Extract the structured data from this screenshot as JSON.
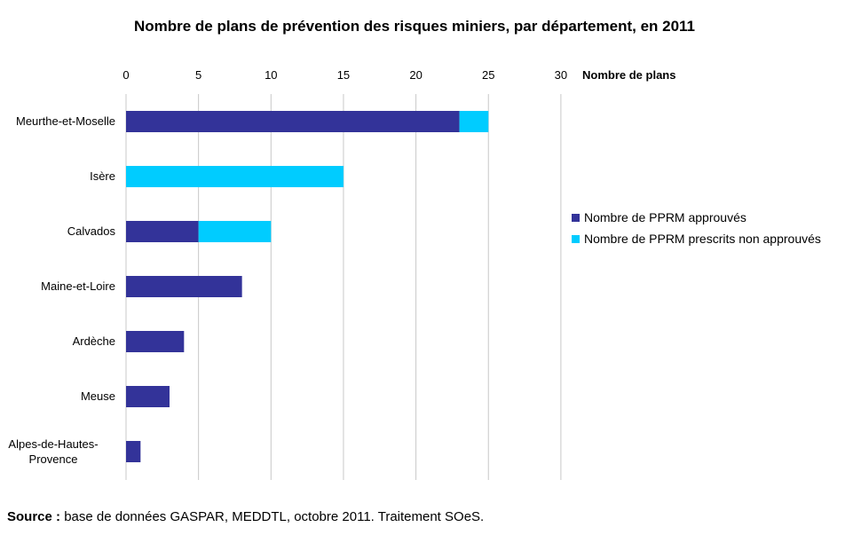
{
  "title": "Nombre de plans de prévention des risques miniers, par département, en 2011",
  "source": {
    "label": "Source :",
    "text": "base de données GASPAR, MEDDTL, octobre 2011. Traitement SOeS."
  },
  "chart_data": {
    "type": "bar",
    "orientation": "horizontal",
    "stacked": true,
    "title": "Nombre de plans de prévention des risques miniers, par département, en 2011",
    "xlabel": "Nombre de plans",
    "xlim": [
      0,
      30
    ],
    "xticks": [
      0,
      5,
      10,
      15,
      20,
      25,
      30
    ],
    "x_axis_position": "top",
    "grid": true,
    "legend_position": "right",
    "categories": [
      "Meurthe-et-Moselle",
      "Isère",
      "Calvados",
      "Maine-et-Loire",
      "Ardèche",
      "Meuse",
      "Alpes-de-Hautes-Provence"
    ],
    "series": [
      {
        "name": "Nombre de PPRM approuvés",
        "color": "#333399",
        "values": [
          23,
          0,
          5,
          8,
          4,
          3,
          1
        ]
      },
      {
        "name": "Nombre de PPRM prescrits non approuvés",
        "color": "#00ccff",
        "values": [
          2,
          15,
          5,
          0,
          0,
          0,
          0
        ]
      }
    ]
  }
}
